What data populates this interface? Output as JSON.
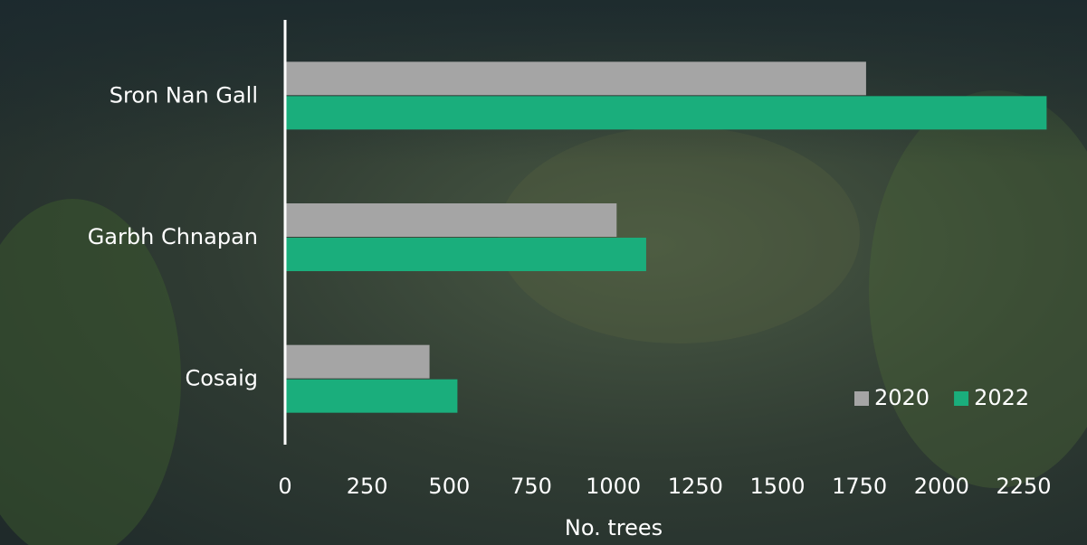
{
  "chart_data": {
    "type": "hbar",
    "x_label": "No. trees",
    "categories": [
      "Sron Nan Gall",
      "Garbh Chnapan",
      "Cosaig"
    ],
    "series": [
      {
        "name": "2020",
        "color": "#a5a5a5",
        "values": [
          1770,
          1010,
          440
        ]
      },
      {
        "name": "2022",
        "color": "#1aae7c",
        "values": [
          2320,
          1100,
          525
        ]
      }
    ],
    "xlim": [
      0,
      2250
    ],
    "xticks": [
      0,
      250,
      500,
      750,
      1000,
      1250,
      1500,
      1750,
      2000,
      2250
    ],
    "legend": "lower-right"
  }
}
